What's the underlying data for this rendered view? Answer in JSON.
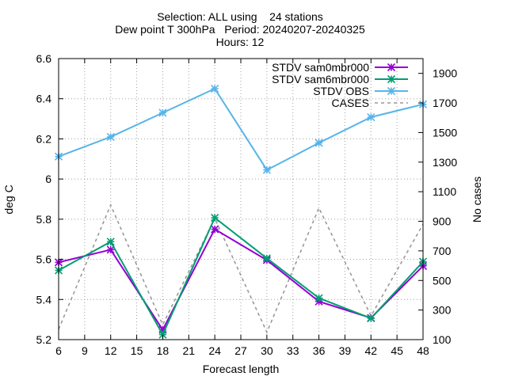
{
  "chart_data": {
    "type": "line",
    "title_lines": [
      "Selection: ALL using    24 stations",
      "Dew point T 300hPa   Period: 20240207-20240325",
      "Hours: 12"
    ],
    "xlabel": "Forecast length",
    "ylabel": "deg C",
    "y2label": "No cases",
    "xlim": [
      6,
      48
    ],
    "ylim": [
      5.2,
      6.6
    ],
    "y2lim": [
      100,
      2000
    ],
    "x_ticks": [
      6,
      9,
      12,
      15,
      18,
      21,
      24,
      27,
      30,
      33,
      36,
      39,
      42,
      45,
      48
    ],
    "y_ticks": [
      5.2,
      5.4,
      5.6,
      5.8,
      6,
      6.2,
      6.4,
      6.6
    ],
    "y_tick_labels": [
      "5.2",
      "5.4",
      "5.6",
      "5.8",
      "6",
      "6.2",
      "6.4",
      "6.6"
    ],
    "y2_ticks": [
      100,
      300,
      500,
      700,
      900,
      1100,
      1300,
      1500,
      1700,
      1900
    ],
    "grid": true,
    "legend_position": "top-right",
    "x": [
      6,
      12,
      18,
      24,
      30,
      36,
      42,
      48
    ],
    "series": [
      {
        "name": "STDV sam0mbr000",
        "axis": "y",
        "color": "#9400d3",
        "style": "line-marker",
        "values": [
          5.585,
          5.648,
          5.249,
          5.75,
          5.596,
          5.39,
          5.308,
          5.567
        ]
      },
      {
        "name": "STDV sam6mbr000",
        "axis": "y",
        "color": "#009e73",
        "style": "line-marker",
        "values": [
          5.545,
          5.688,
          5.225,
          5.807,
          5.605,
          5.407,
          5.306,
          5.588
        ]
      },
      {
        "name": "STDV OBS",
        "axis": "y",
        "color": "#56b4e9",
        "style": "line-marker",
        "values": [
          6.112,
          6.21,
          6.33,
          6.45,
          6.045,
          6.18,
          6.308,
          6.372
        ]
      },
      {
        "name": "CASES",
        "axis": "y2",
        "color": "#999999",
        "style": "dashed",
        "values": [
          170,
          1010,
          200,
          920,
          150,
          990,
          260,
          880
        ]
      }
    ]
  }
}
